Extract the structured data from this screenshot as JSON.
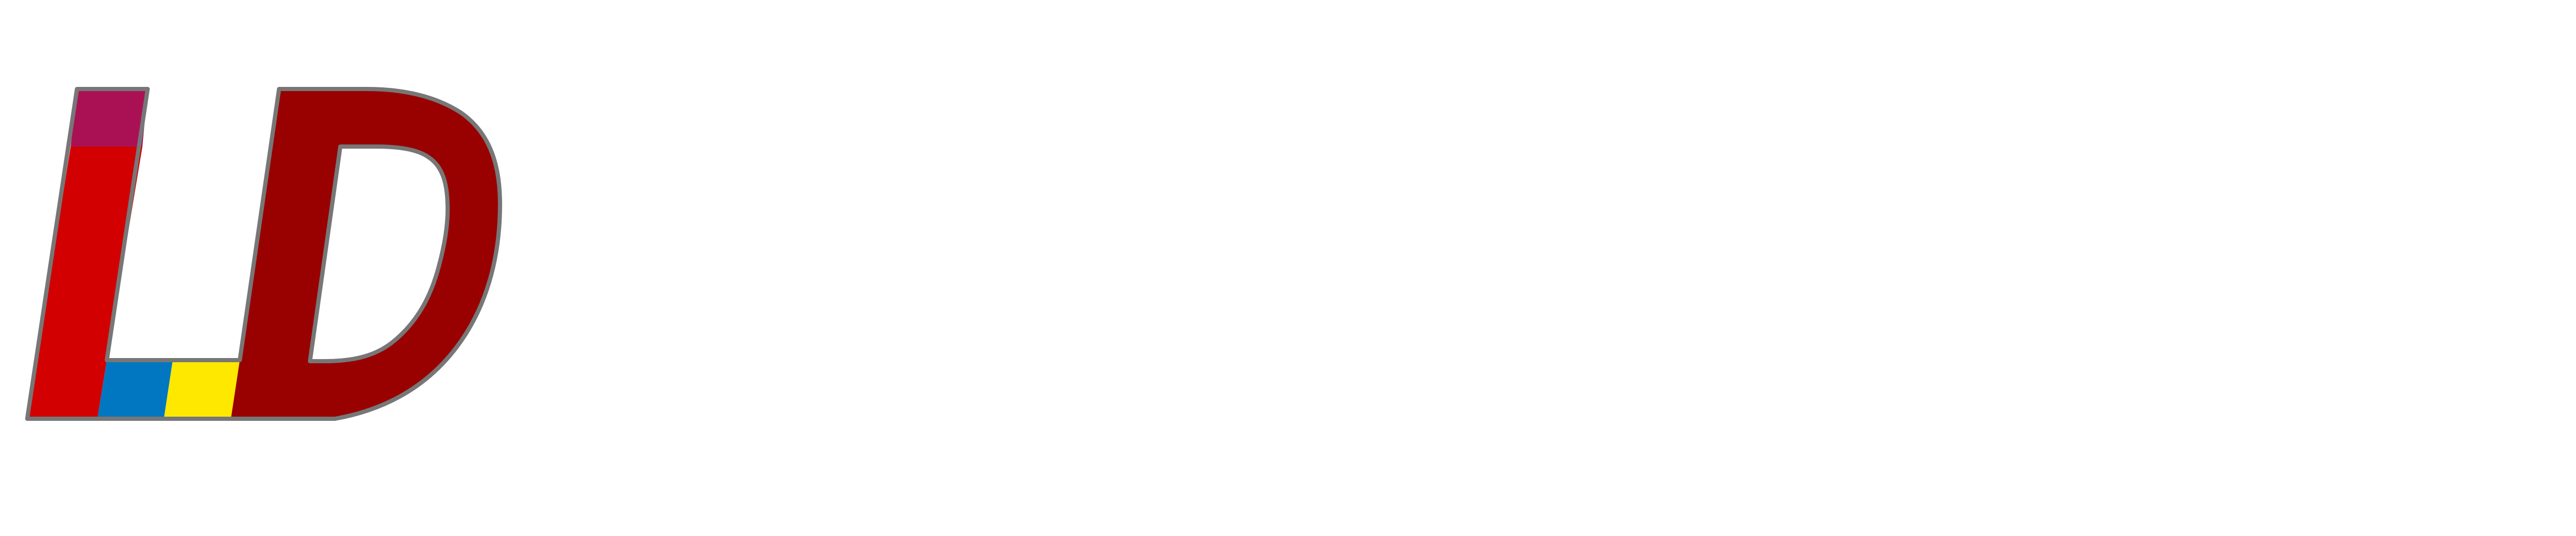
{
  "logo": {
    "icon": "ld-logo-mark",
    "letters": "LD",
    "colors": {
      "l_top": "#AA1155",
      "l_body": "#D20000",
      "base_blue": "#0077C0",
      "base_yellow": "#FFE800",
      "d_body": "#990000",
      "outline": "#777777",
      "background": "#FFFFFF"
    }
  }
}
